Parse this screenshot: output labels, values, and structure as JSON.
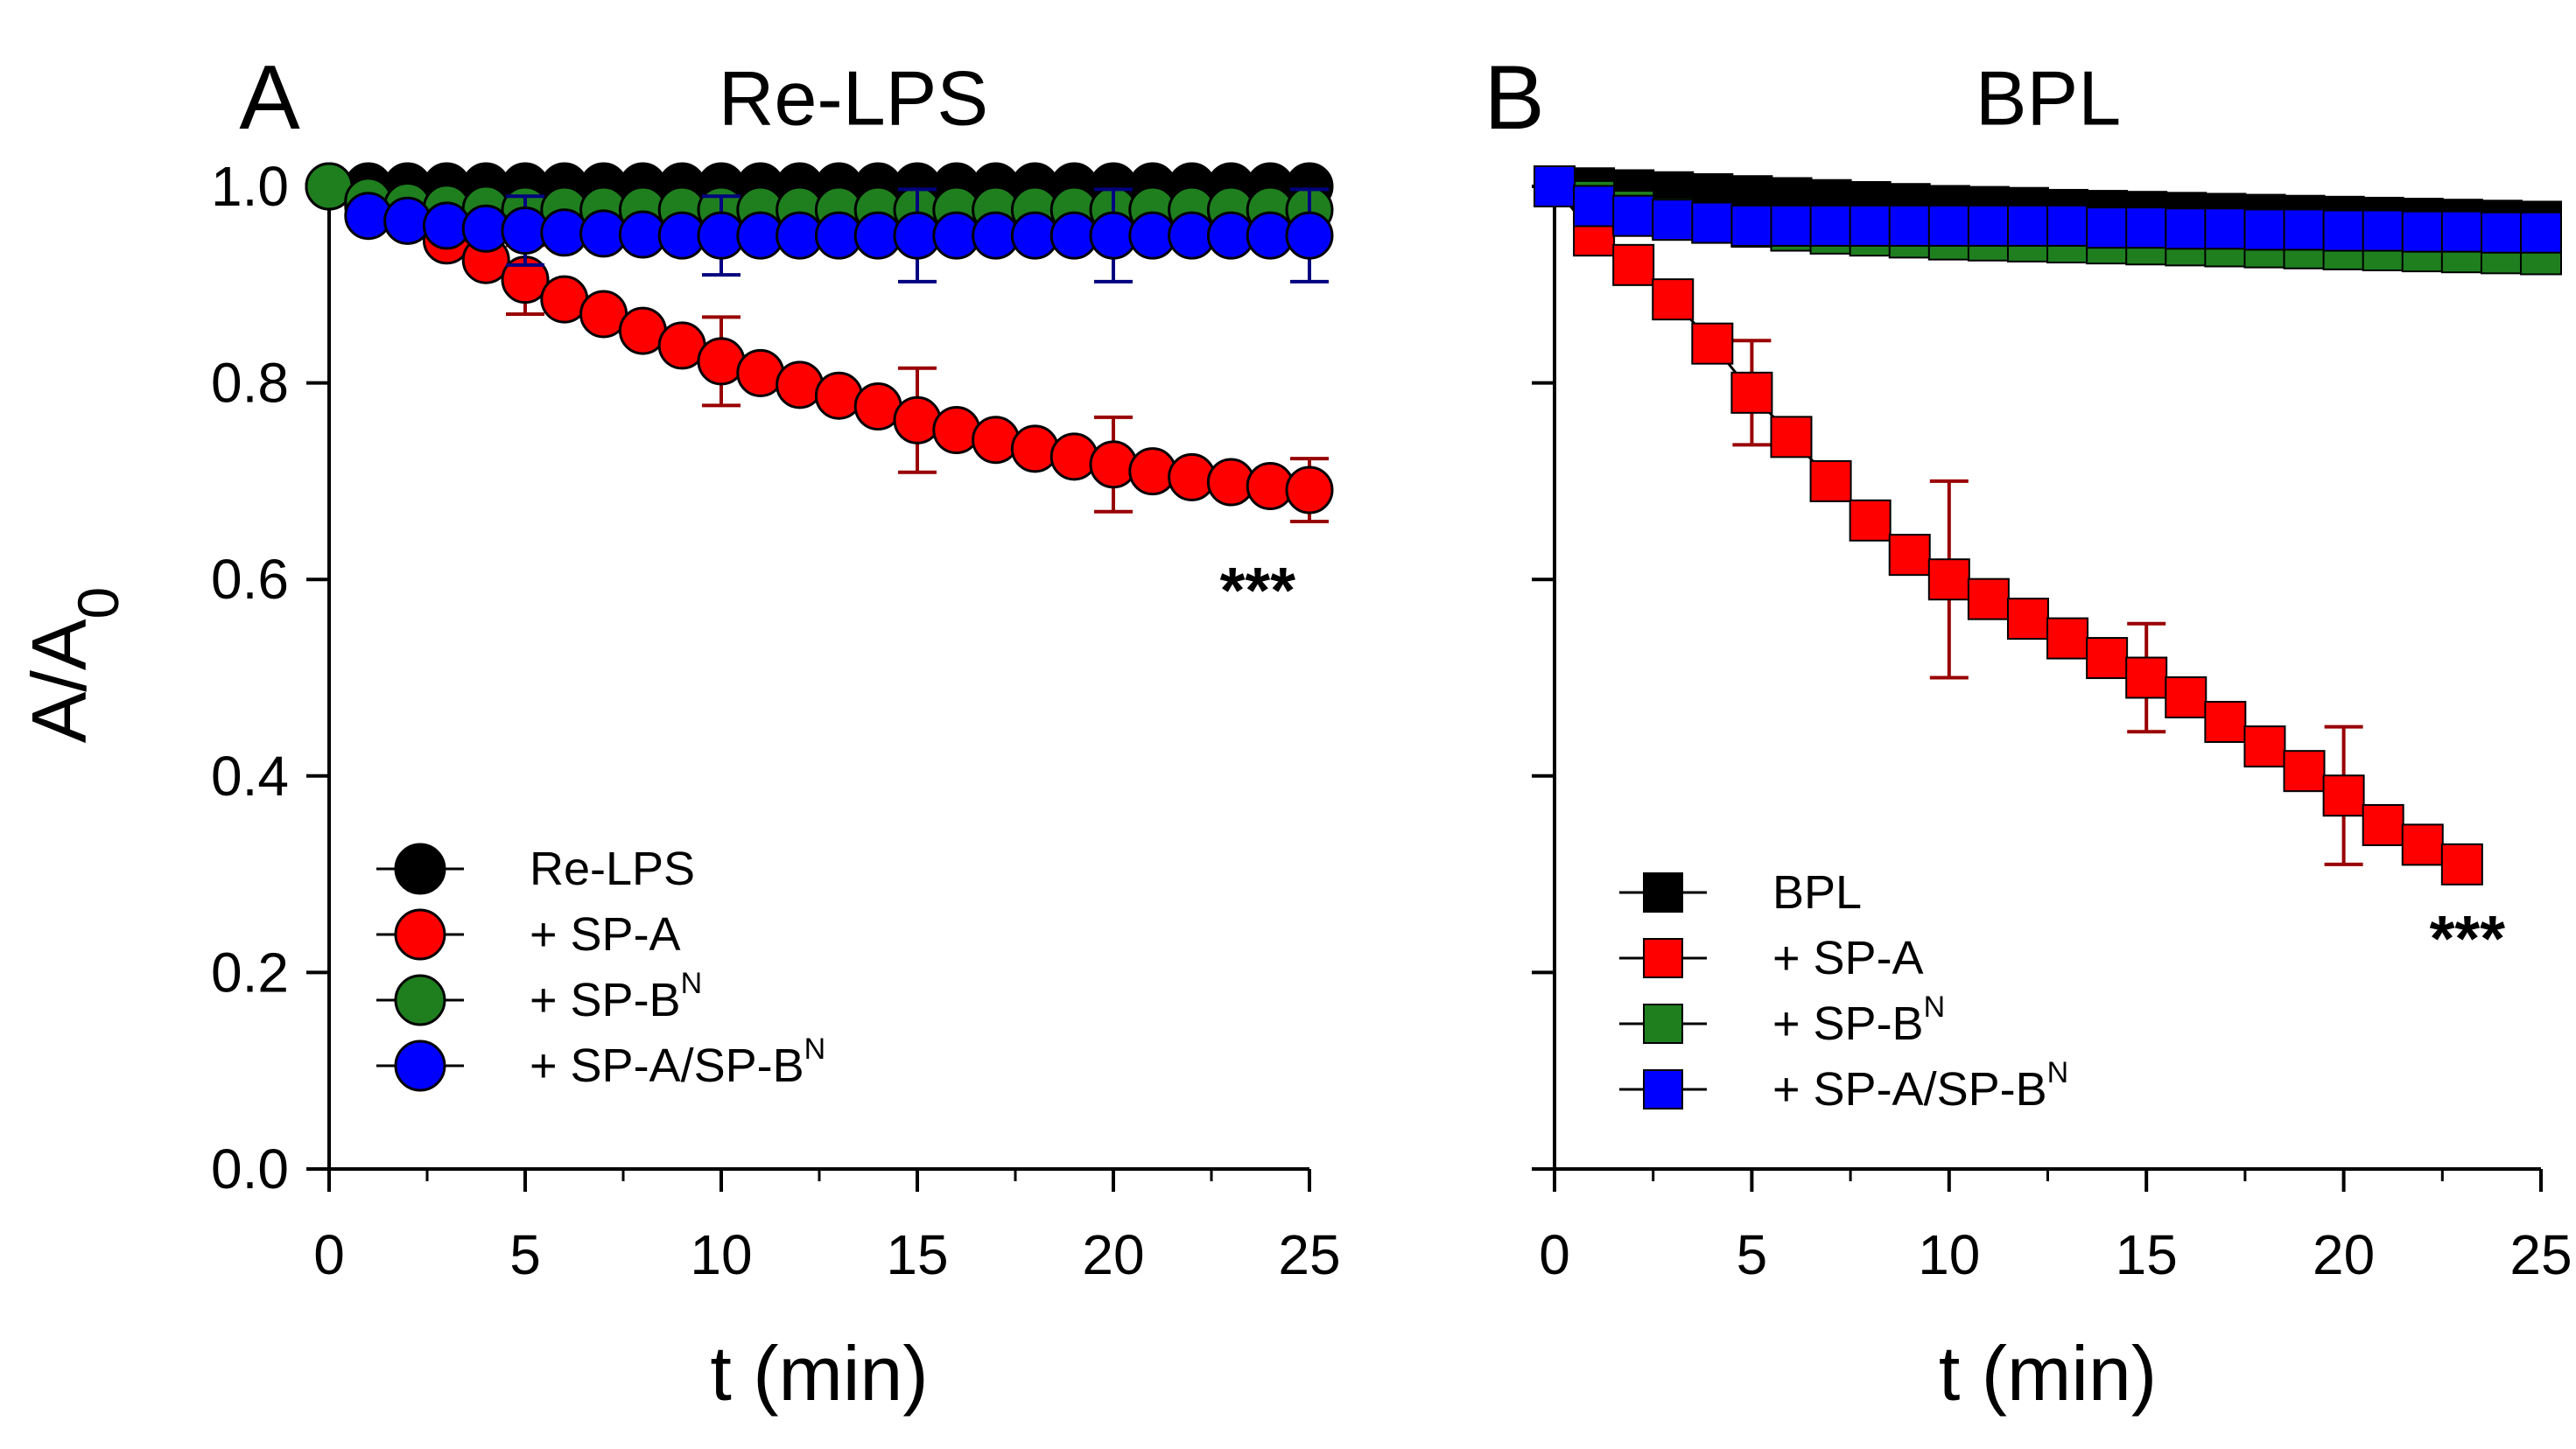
{
  "chart_data": [
    {
      "type": "scatter",
      "panel_letter": "A",
      "title": "Re-LPS",
      "xlabel": "t (min)",
      "ylabel_base": "A/A",
      "ylabel_sub": "0",
      "xlim": [
        0,
        25
      ],
      "ylim": [
        0,
        1.0
      ],
      "xticks": [
        "0",
        "5",
        "10",
        "15",
        "20",
        "25"
      ],
      "yticks": [
        "0.0",
        "0.2",
        "0.4",
        "0.6",
        "0.8",
        "1.0"
      ],
      "show_ytick_labels": true,
      "marker": "circle",
      "annotation": "***",
      "legend_position": "bottom-left",
      "series": [
        {
          "name": "Re-LPS",
          "name_sup": "",
          "color": "#000000",
          "error_color": "#000000",
          "x": [
            0,
            1,
            2,
            3,
            4,
            5,
            6,
            7,
            8,
            9,
            10,
            11,
            12,
            13,
            14,
            15,
            16,
            17,
            18,
            19,
            20,
            21,
            22,
            23,
            24,
            25
          ],
          "y": [
            1.0,
            1.0,
            1.0,
            1.0,
            1.0,
            1.0,
            1.0,
            1.0,
            1.0,
            1.0,
            1.0,
            1.0,
            1.0,
            1.0,
            1.0,
            1.0,
            1.0,
            1.0,
            1.0,
            1.0,
            1.0,
            1.0,
            1.0,
            1.0,
            1.0,
            1.0
          ],
          "errors": []
        },
        {
          "name": "+ SP-A",
          "name_sup": "",
          "color": "#ff0000",
          "error_color": "#990000",
          "x": [
            0,
            1,
            2,
            3,
            4,
            5,
            6,
            7,
            8,
            9,
            10,
            11,
            12,
            13,
            14,
            15,
            16,
            17,
            18,
            19,
            20,
            21,
            22,
            23,
            24,
            25
          ],
          "y": [
            1.0,
            0.98,
            0.965,
            0.945,
            0.925,
            0.905,
            0.885,
            0.87,
            0.853,
            0.838,
            0.822,
            0.81,
            0.798,
            0.787,
            0.776,
            0.762,
            0.752,
            0.742,
            0.733,
            0.725,
            0.717,
            0.71,
            0.704,
            0.699,
            0.695,
            0.691
          ],
          "errors": [
            {
              "x": 5,
              "y": 0.905,
              "e": 0.035
            },
            {
              "x": 10,
              "y": 0.822,
              "e": 0.045
            },
            {
              "x": 15,
              "y": 0.762,
              "e": 0.053
            },
            {
              "x": 20,
              "y": 0.717,
              "e": 0.048
            },
            {
              "x": 25,
              "y": 0.691,
              "e": 0.032
            }
          ]
        },
        {
          "name": "+ SP-B",
          "name_sup": "N",
          "color": "#1f7f1f",
          "error_color": "#1f7f1f",
          "x": [
            0,
            1,
            2,
            3,
            4,
            5,
            6,
            7,
            8,
            9,
            10,
            11,
            12,
            13,
            14,
            15,
            16,
            17,
            18,
            19,
            20,
            21,
            22,
            23,
            24,
            25
          ],
          "y": [
            1.0,
            0.985,
            0.98,
            0.978,
            0.977,
            0.976,
            0.976,
            0.976,
            0.976,
            0.976,
            0.976,
            0.976,
            0.976,
            0.976,
            0.976,
            0.976,
            0.976,
            0.976,
            0.976,
            0.976,
            0.976,
            0.976,
            0.976,
            0.976,
            0.976,
            0.976
          ],
          "errors": []
        },
        {
          "name": "+ SP-A/SP-B",
          "name_sup": "N",
          "color": "#0000ff",
          "error_color": "#000080",
          "x": [
            1,
            2,
            3,
            4,
            5,
            6,
            7,
            8,
            9,
            10,
            11,
            12,
            13,
            14,
            15,
            16,
            17,
            18,
            19,
            20,
            21,
            22,
            23,
            24,
            25
          ],
          "y": [
            0.97,
            0.965,
            0.96,
            0.957,
            0.955,
            0.953,
            0.952,
            0.951,
            0.95,
            0.95,
            0.95,
            0.95,
            0.95,
            0.95,
            0.95,
            0.95,
            0.95,
            0.95,
            0.95,
            0.95,
            0.95,
            0.95,
            0.95,
            0.95,
            0.95
          ],
          "errors": [
            {
              "x": 5,
              "y": 0.955,
              "e": 0.035
            },
            {
              "x": 10,
              "y": 0.95,
              "e": 0.04
            },
            {
              "x": 15,
              "y": 0.95,
              "e": 0.047
            },
            {
              "x": 20,
              "y": 0.95,
              "e": 0.047
            },
            {
              "x": 25,
              "y": 0.95,
              "e": 0.047
            }
          ]
        }
      ]
    },
    {
      "type": "scatter",
      "panel_letter": "B",
      "title": "BPL",
      "xlabel": "t (min)",
      "ylabel_base": "",
      "ylabel_sub": "",
      "xlim": [
        0,
        25
      ],
      "ylim": [
        0,
        1.0
      ],
      "xticks": [
        "0",
        "5",
        "10",
        "15",
        "20",
        "25"
      ],
      "yticks": [
        "0.0",
        "0.2",
        "0.4",
        "0.6",
        "0.8",
        "1.0"
      ],
      "show_ytick_labels": false,
      "marker": "square",
      "annotation": "***",
      "legend_position": "bottom-left",
      "series": [
        {
          "name": "BPL",
          "name_sup": "",
          "color": "#000000",
          "error_color": "#000000",
          "x": [
            0,
            1,
            2,
            3,
            4,
            5,
            6,
            7,
            8,
            9,
            10,
            11,
            12,
            13,
            14,
            15,
            16,
            17,
            18,
            19,
            20,
            21,
            22,
            23,
            24,
            25
          ],
          "y": [
            1.0,
            0.998,
            0.996,
            0.994,
            0.992,
            0.99,
            0.988,
            0.986,
            0.984,
            0.982,
            0.98,
            0.979,
            0.978,
            0.976,
            0.975,
            0.974,
            0.973,
            0.972,
            0.971,
            0.97,
            0.969,
            0.968,
            0.967,
            0.966,
            0.965,
            0.964
          ],
          "errors": []
        },
        {
          "name": "+ SP-A",
          "name_sup": "",
          "color": "#ff0000",
          "error_color": "#990000",
          "x": [
            0,
            1,
            2,
            3,
            4,
            5,
            6,
            7,
            8,
            9,
            10,
            11,
            12,
            13,
            14,
            15,
            16,
            17,
            18,
            19,
            20,
            21,
            22,
            23
          ],
          "y": [
            1.0,
            0.95,
            0.92,
            0.885,
            0.84,
            0.79,
            0.745,
            0.7,
            0.66,
            0.625,
            0.6,
            0.58,
            0.56,
            0.54,
            0.52,
            0.5,
            0.48,
            0.455,
            0.43,
            0.405,
            0.38,
            0.35,
            0.33,
            0.31
          ],
          "errors": [
            {
              "x": 5,
              "y": 0.79,
              "e": 0.053
            },
            {
              "x": 10,
              "y": 0.6,
              "e": 0.1
            },
            {
              "x": 15,
              "y": 0.5,
              "e": 0.055
            },
            {
              "x": 20,
              "y": 0.38,
              "e": 0.07
            }
          ]
        },
        {
          "name": "+ SP-B",
          "name_sup": "N",
          "color": "#1f7f1f",
          "error_color": "#1f7f1f",
          "x": [
            0,
            1,
            2,
            3,
            4,
            5,
            6,
            7,
            8,
            9,
            10,
            11,
            12,
            13,
            14,
            15,
            16,
            17,
            18,
            19,
            20,
            21,
            22,
            23,
            24,
            25
          ],
          "y": [
            1.0,
            0.985,
            0.975,
            0.968,
            0.963,
            0.959,
            0.955,
            0.952,
            0.95,
            0.948,
            0.946,
            0.945,
            0.944,
            0.943,
            0.942,
            0.941,
            0.94,
            0.939,
            0.938,
            0.937,
            0.936,
            0.935,
            0.934,
            0.933,
            0.932,
            0.931
          ],
          "errors": []
        },
        {
          "name": "+ SP-A/SP-B",
          "name_sup": "N",
          "color": "#0000ff",
          "error_color": "#000080",
          "x": [
            0,
            1,
            2,
            3,
            4,
            5,
            6,
            7,
            8,
            9,
            10,
            11,
            12,
            13,
            14,
            15,
            16,
            17,
            18,
            19,
            20,
            21,
            22,
            23,
            24,
            25
          ],
          "y": [
            1.0,
            0.98,
            0.97,
            0.966,
            0.963,
            0.96,
            0.96,
            0.96,
            0.96,
            0.96,
            0.96,
            0.96,
            0.96,
            0.96,
            0.958,
            0.958,
            0.957,
            0.957,
            0.956,
            0.956,
            0.955,
            0.955,
            0.954,
            0.954,
            0.953,
            0.953
          ],
          "errors": [
            {
              "x": 5,
              "y": 0.96,
              "e": 0.015
            },
            {
              "x": 10,
              "y": 0.96,
              "e": 0.015
            },
            {
              "x": 15,
              "y": 0.958,
              "e": 0.012
            },
            {
              "x": 20,
              "y": 0.956,
              "e": 0.012
            },
            {
              "x": 25,
              "y": 0.953,
              "e": 0.012
            }
          ]
        }
      ]
    }
  ]
}
